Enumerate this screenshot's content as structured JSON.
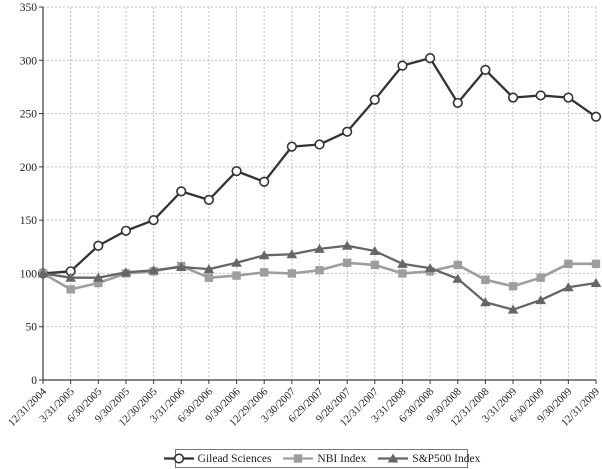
{
  "chart_data": {
    "type": "line",
    "title": "",
    "xlabel": "",
    "ylabel": "",
    "ylim": [
      0,
      350
    ],
    "y_ticks": [
      0,
      50,
      100,
      150,
      200,
      250,
      300,
      350
    ],
    "grid": {
      "on": true,
      "color": "#bfbfbf",
      "dash": "2,2"
    },
    "axis_color": "#3a3a3a",
    "legend_position": "bottom-center",
    "categories": [
      "12/31/2004",
      "3/31/2005",
      "6/30/2005",
      "9/30/2005",
      "12/30/2005",
      "3/31/2006",
      "6/30/2006",
      "9/30/2006",
      "12/29/2006",
      "3/30/2007",
      "6/29/2007",
      "9/28/2007",
      "12/31/2007",
      "3/31/2008",
      "6/30/2008",
      "9/30/2008",
      "12/31/2008",
      "3/31/2009",
      "6/30/2009",
      "9/30/2009",
      "12/31/2009"
    ],
    "series": [
      {
        "name": "Gilead Sciences",
        "marker": "circle",
        "color": "#333333",
        "marker_fill": "#ffffff",
        "line_width": 2.3,
        "values": [
          100,
          102,
          126,
          140,
          150,
          177,
          169,
          196,
          186,
          219,
          221,
          233,
          263,
          295,
          302,
          260,
          291,
          265,
          267,
          265,
          247
        ]
      },
      {
        "name": "NBI Index",
        "marker": "square",
        "color": "#9e9e9e",
        "marker_fill": "#9e9e9e",
        "line_width": 2.6,
        "values": [
          100,
          85,
          91,
          100,
          102,
          107,
          96,
          98,
          101,
          100,
          103,
          110,
          108,
          100,
          102,
          108,
          94,
          88,
          96,
          109,
          109
        ]
      },
      {
        "name": "S&P500 Index",
        "marker": "triangle",
        "color": "#666666",
        "marker_fill": "#666666",
        "line_width": 2.3,
        "values": [
          100,
          96,
          96,
          101,
          103,
          106,
          104,
          110,
          117,
          118,
          123,
          126,
          121,
          109,
          105,
          95,
          73,
          66,
          75,
          87,
          91
        ]
      }
    ]
  }
}
